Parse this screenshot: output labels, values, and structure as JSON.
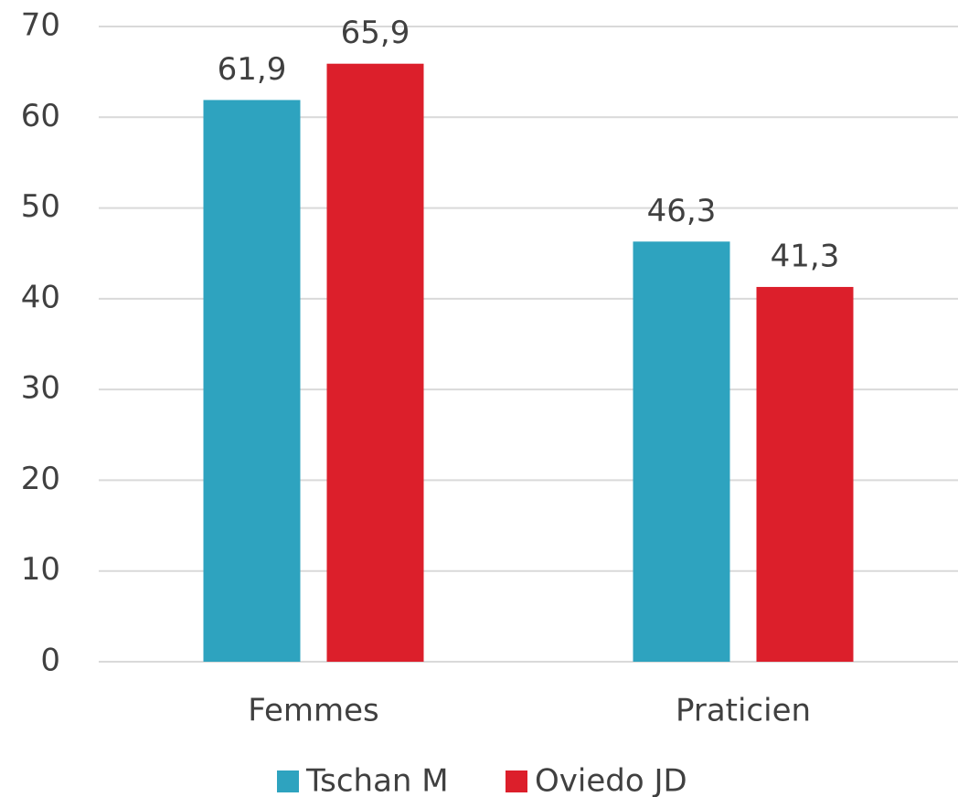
{
  "chart_data": {
    "type": "bar",
    "categories": [
      "Femmes",
      "Praticien"
    ],
    "series": [
      {
        "name": "Tschan M",
        "color": "#2ea3bf",
        "values": [
          61.9,
          46.3
        ],
        "value_labels": [
          "61,9",
          "46,3"
        ]
      },
      {
        "name": "Oviedo JD",
        "color": "#dc1f2b",
        "values": [
          65.9,
          41.3
        ],
        "value_labels": [
          "65,9",
          "41,3"
        ]
      }
    ],
    "ylim": [
      0,
      70
    ],
    "yticks": [
      0,
      10,
      20,
      30,
      40,
      50,
      60,
      70
    ],
    "grid": true,
    "legend": "bottom"
  }
}
